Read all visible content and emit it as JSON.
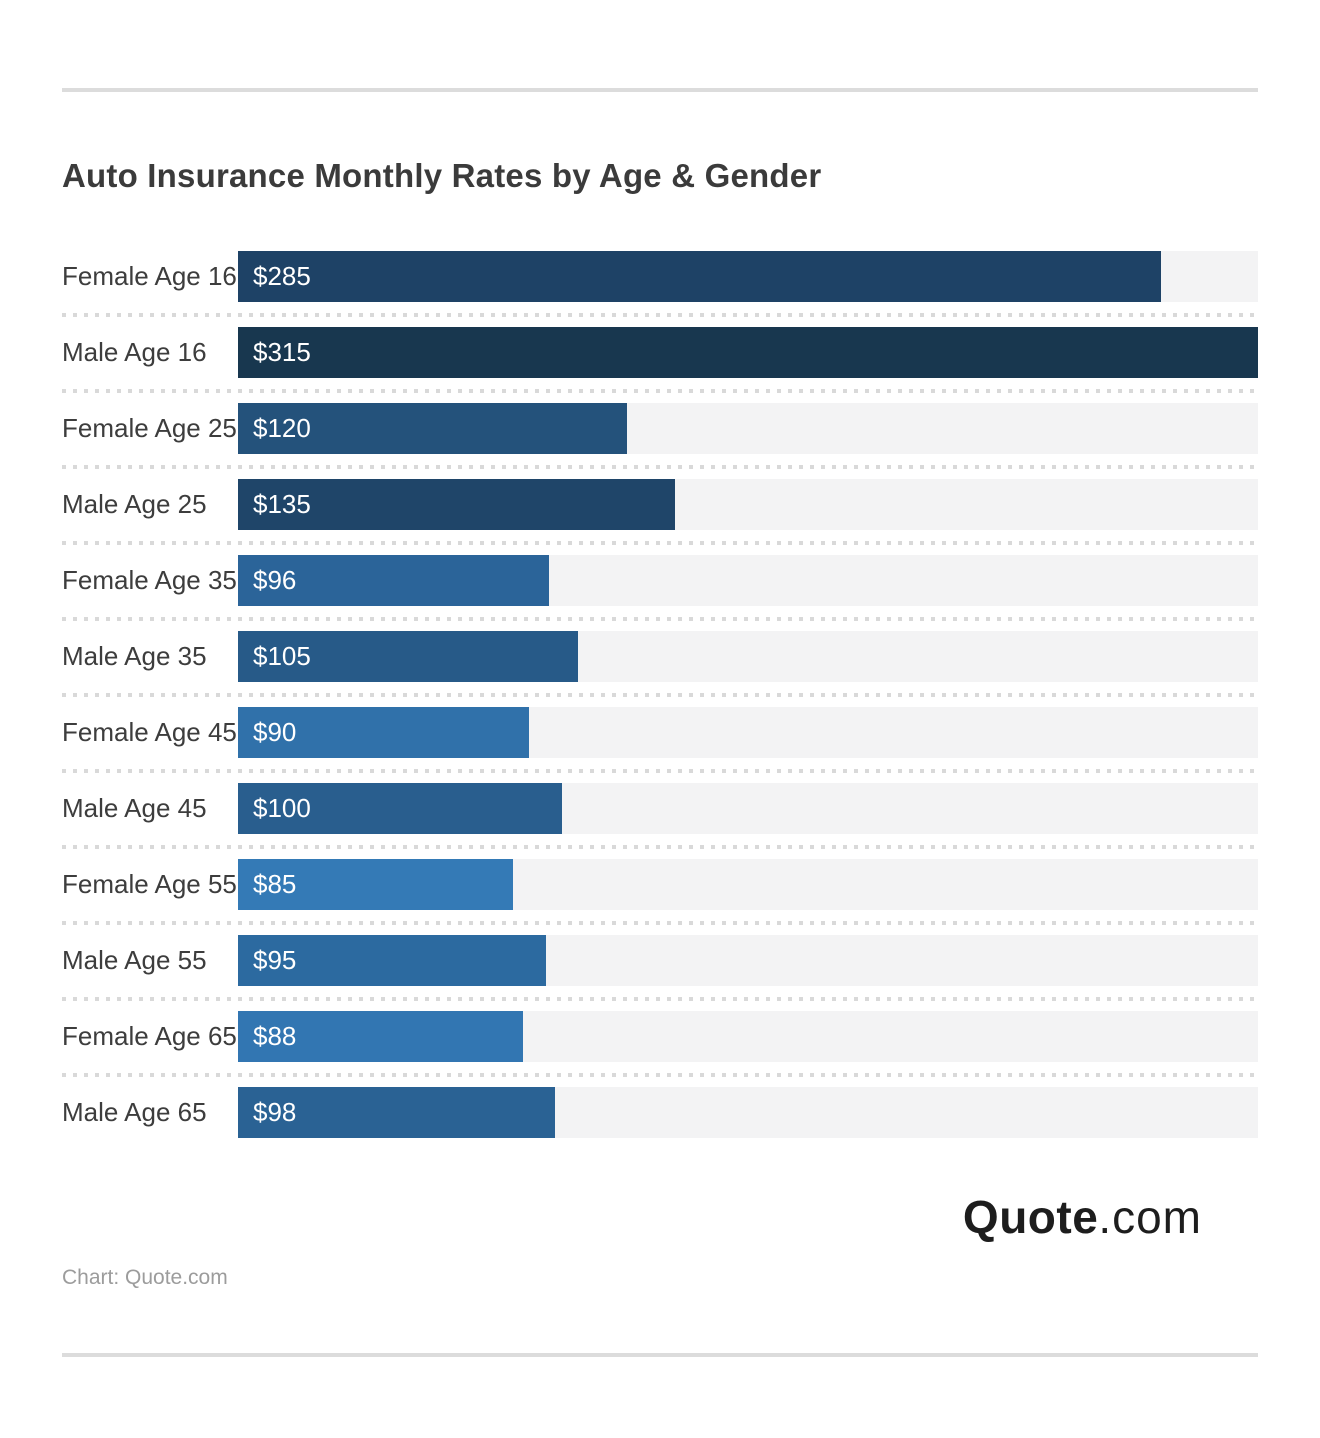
{
  "page": {
    "attribution": "Chart: Quote.com",
    "logo": {
      "bold": "Quote",
      "rest": ".com"
    }
  },
  "colors": {
    "track": "#f3f3f4",
    "separator": "#d9d9d9",
    "rule": "#dcdcdc",
    "title_text": "#3b3b3b",
    "category_text": "#3d3d3d",
    "value_text": "#ffffff",
    "attribution_text": "#9c9c9c",
    "logo_text": "#1d1d1d"
  },
  "chart_data": {
    "type": "bar",
    "orientation": "horizontal",
    "title": "Auto Insurance Monthly Rates by Age & Gender",
    "categories": [
      "Female Age 16",
      "Male Age 16",
      "Female Age 25",
      "Male Age 25",
      "Female Age 35",
      "Male Age 35",
      "Female Age 45",
      "Male Age 45",
      "Female Age 55",
      "Male Age 55",
      "Female Age 65",
      "Male Age 65"
    ],
    "values": [
      285,
      315,
      120,
      135,
      96,
      105,
      90,
      100,
      85,
      95,
      88,
      98
    ],
    "value_labels": [
      "$285",
      "$315",
      "$120",
      "$135",
      "$96",
      "$105",
      "$90",
      "$100",
      "$85",
      "$95",
      "$88",
      "$98"
    ],
    "bar_colors": [
      "#1e4266",
      "#18374f",
      "#24527b",
      "#1f4569",
      "#2b6499",
      "#275a88",
      "#3071aa",
      "#295e8e",
      "#347ab6",
      "#2c6aa0",
      "#3276b2",
      "#2a6294"
    ],
    "xlim": [
      0,
      315
    ],
    "xlabel": "",
    "ylabel": "",
    "grid": false,
    "legend": "none",
    "value_label_position": "inside-left",
    "separator_style": "dotted"
  }
}
